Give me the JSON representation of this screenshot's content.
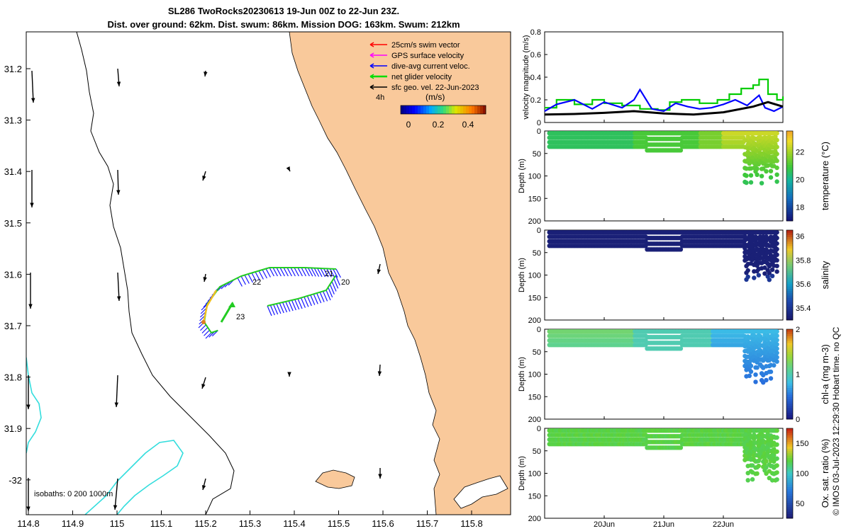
{
  "header": {
    "line1": "SL286 TwoRocks20230613 19-Jun 00Z to 22-Jun 23Z.",
    "line2": "Dist. over ground: 62km. Dist. swum: 86km. Mission DOG: 163km. Swum: 212km"
  },
  "footer": "© IMOS 03-Jul-2023 12:29:30 Hobart time. no QC",
  "map": {
    "lon_ticks": [
      "114.8",
      "114.9",
      "115",
      "115.1",
      "115.2",
      "115.3",
      "115.4",
      "115.5",
      "115.6",
      "115.7",
      "115.8"
    ],
    "lat_ticks": [
      "31.2",
      "31.3",
      "31.4",
      "31.5",
      "31.6",
      "31.7",
      "31.8",
      "31.9",
      "-32"
    ],
    "legend": [
      {
        "label": "25cm/s swim vector",
        "color": "#ff0000"
      },
      {
        "label": "GPS surface velocity",
        "color": "#ff00ff"
      },
      {
        "label": "dive-avg current veloc.",
        "color": "#0000ff"
      },
      {
        "label": "net glider velocity",
        "color": "#00dd00"
      },
      {
        "label": "sfc geo. vel. 22-Jun-2023",
        "color": "#000000"
      }
    ],
    "scale_label": "4h",
    "colorbar_unit": "(m/s)",
    "colorbar_ticks": [
      "0",
      "0.2",
      "0.4"
    ],
    "isobaths_label": "isobaths: 0   200  1000m",
    "day_labels": [
      "20",
      "21",
      "22",
      "23"
    ],
    "colors": {
      "land": "#f9c99b",
      "isobath": "#33dddd"
    }
  },
  "chart_data": [
    {
      "type": "line",
      "ylabel": "velocity magnitude (m/s)",
      "ylim": [
        0,
        0.8
      ],
      "yticks": [
        "0",
        "0.2",
        "0.4",
        "0.6",
        "0.8"
      ],
      "x_days": [
        19,
        23
      ],
      "series": [
        {
          "name": "net glider velocity",
          "color": "#00cc00",
          "x": [
            19.0,
            19.2,
            19.5,
            19.8,
            20.0,
            20.3,
            20.6,
            20.9,
            21.1,
            21.3,
            21.6,
            21.9,
            22.1,
            22.3,
            22.5,
            22.6,
            22.75,
            22.9,
            23.0
          ],
          "y": [
            0.13,
            0.2,
            0.16,
            0.2,
            0.17,
            0.15,
            0.12,
            0.11,
            0.18,
            0.2,
            0.17,
            0.2,
            0.25,
            0.3,
            0.33,
            0.38,
            0.25,
            0.2,
            0.23
          ]
        },
        {
          "name": "dive-avg current veloc.",
          "color": "#0000ff",
          "x": [
            19.0,
            19.2,
            19.5,
            19.8,
            20.0,
            20.3,
            20.5,
            20.6,
            20.8,
            21.0,
            21.2,
            21.4,
            21.6,
            21.8,
            22.0,
            22.2,
            22.4,
            22.6,
            22.7,
            22.85,
            23.0
          ],
          "y": [
            0.1,
            0.16,
            0.2,
            0.12,
            0.18,
            0.13,
            0.2,
            0.29,
            0.12,
            0.1,
            0.17,
            0.14,
            0.12,
            0.13,
            0.16,
            0.2,
            0.15,
            0.24,
            0.13,
            0.1,
            0.14
          ]
        },
        {
          "name": "sfc geo. vel.",
          "color": "#000000",
          "x": [
            19.0,
            19.5,
            20.0,
            20.5,
            21.0,
            21.5,
            22.0,
            22.5,
            22.75,
            23.0
          ],
          "y": [
            0.07,
            0.075,
            0.085,
            0.1,
            0.08,
            0.07,
            0.09,
            0.14,
            0.18,
            0.14
          ]
        }
      ]
    },
    {
      "type": "scatter",
      "ylabel": "Depth (m)",
      "cblabel": "temperature (°C)",
      "cbticks": [
        "18",
        "20",
        "22"
      ],
      "cbrange": [
        17,
        23.5
      ],
      "yticks": [
        "0",
        "50",
        "100",
        "150",
        "200"
      ],
      "ylim": [
        0,
        200
      ],
      "palette": "temp"
    },
    {
      "type": "scatter",
      "ylabel": "Depth (m)",
      "cblabel": "salinity",
      "cbticks": [
        "35.4",
        "35.6",
        "35.8",
        "36"
      ],
      "cbrange": [
        35.3,
        36.05
      ],
      "yticks": [
        "0",
        "50",
        "100",
        "150",
        "200"
      ],
      "ylim": [
        0,
        200
      ],
      "palette": "sal"
    },
    {
      "type": "scatter",
      "ylabel": "Depth (m)",
      "cblabel": "chl-a (mg m-3)",
      "cbticks": [
        "0",
        "1",
        "2"
      ],
      "cbrange": [
        0,
        2
      ],
      "yticks": [
        "0",
        "50",
        "100",
        "150",
        "200"
      ],
      "ylim": [
        0,
        200
      ],
      "palette": "chl"
    },
    {
      "type": "scatter",
      "ylabel": "Depth (m)",
      "cblabel": "Ox. sat. ratio (%)",
      "cbticks": [
        "50",
        "100",
        "150"
      ],
      "cbrange": [
        25,
        175
      ],
      "yticks": [
        "0",
        "50",
        "100",
        "150",
        "200"
      ],
      "ylim": [
        0,
        200
      ],
      "palette": "oxy"
    }
  ],
  "time_axis": {
    "ticks": [
      "20Jun",
      "21Jun",
      "22Jun"
    ],
    "tick_days": [
      20,
      21,
      22
    ],
    "range": [
      19,
      23
    ]
  }
}
